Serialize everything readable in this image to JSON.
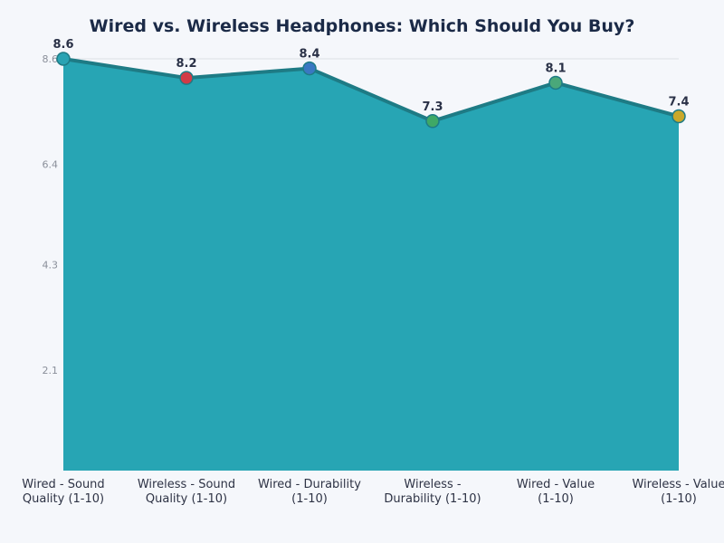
{
  "chart_data": {
    "type": "area",
    "title": "Wired vs. Wireless Headphones: Which Should You Buy?",
    "xlabel": "",
    "ylabel": "",
    "categories": [
      [
        "Wired - Sound",
        "Quality (1-10)"
      ],
      [
        "Wireless - Sound",
        "Quality (1-10)"
      ],
      [
        "Wired - Durability",
        "(1-10)"
      ],
      [
        "Wireless -",
        "Durability (1-10)"
      ],
      [
        "Wired - Value",
        "(1-10)"
      ],
      [
        "Wireless - Value",
        "(1-10)"
      ]
    ],
    "values": [
      8.6,
      8.2,
      8.4,
      7.3,
      8.1,
      7.4
    ],
    "value_labels": [
      "8.6",
      "8.2",
      "8.4",
      "7.3",
      "8.1",
      "7.4"
    ],
    "yticks": [
      2.1,
      4.3,
      6.4,
      8.6
    ],
    "ytick_labels": [
      "2.1",
      "4.3",
      "6.4",
      "8.6"
    ],
    "ylim": [
      0,
      8.6
    ],
    "grid": true,
    "legend": "none",
    "colors": {
      "fill": "#27a5b4",
      "line": "#1e7b85",
      "markers": [
        "#2aa3b3",
        "#d13b47",
        "#3a78c2",
        "#3fa866",
        "#4aa87a",
        "#c9a82a"
      ],
      "title": "#1b2a47",
      "value_label": "#2a3147",
      "tick": "#8a8f9a"
    }
  }
}
